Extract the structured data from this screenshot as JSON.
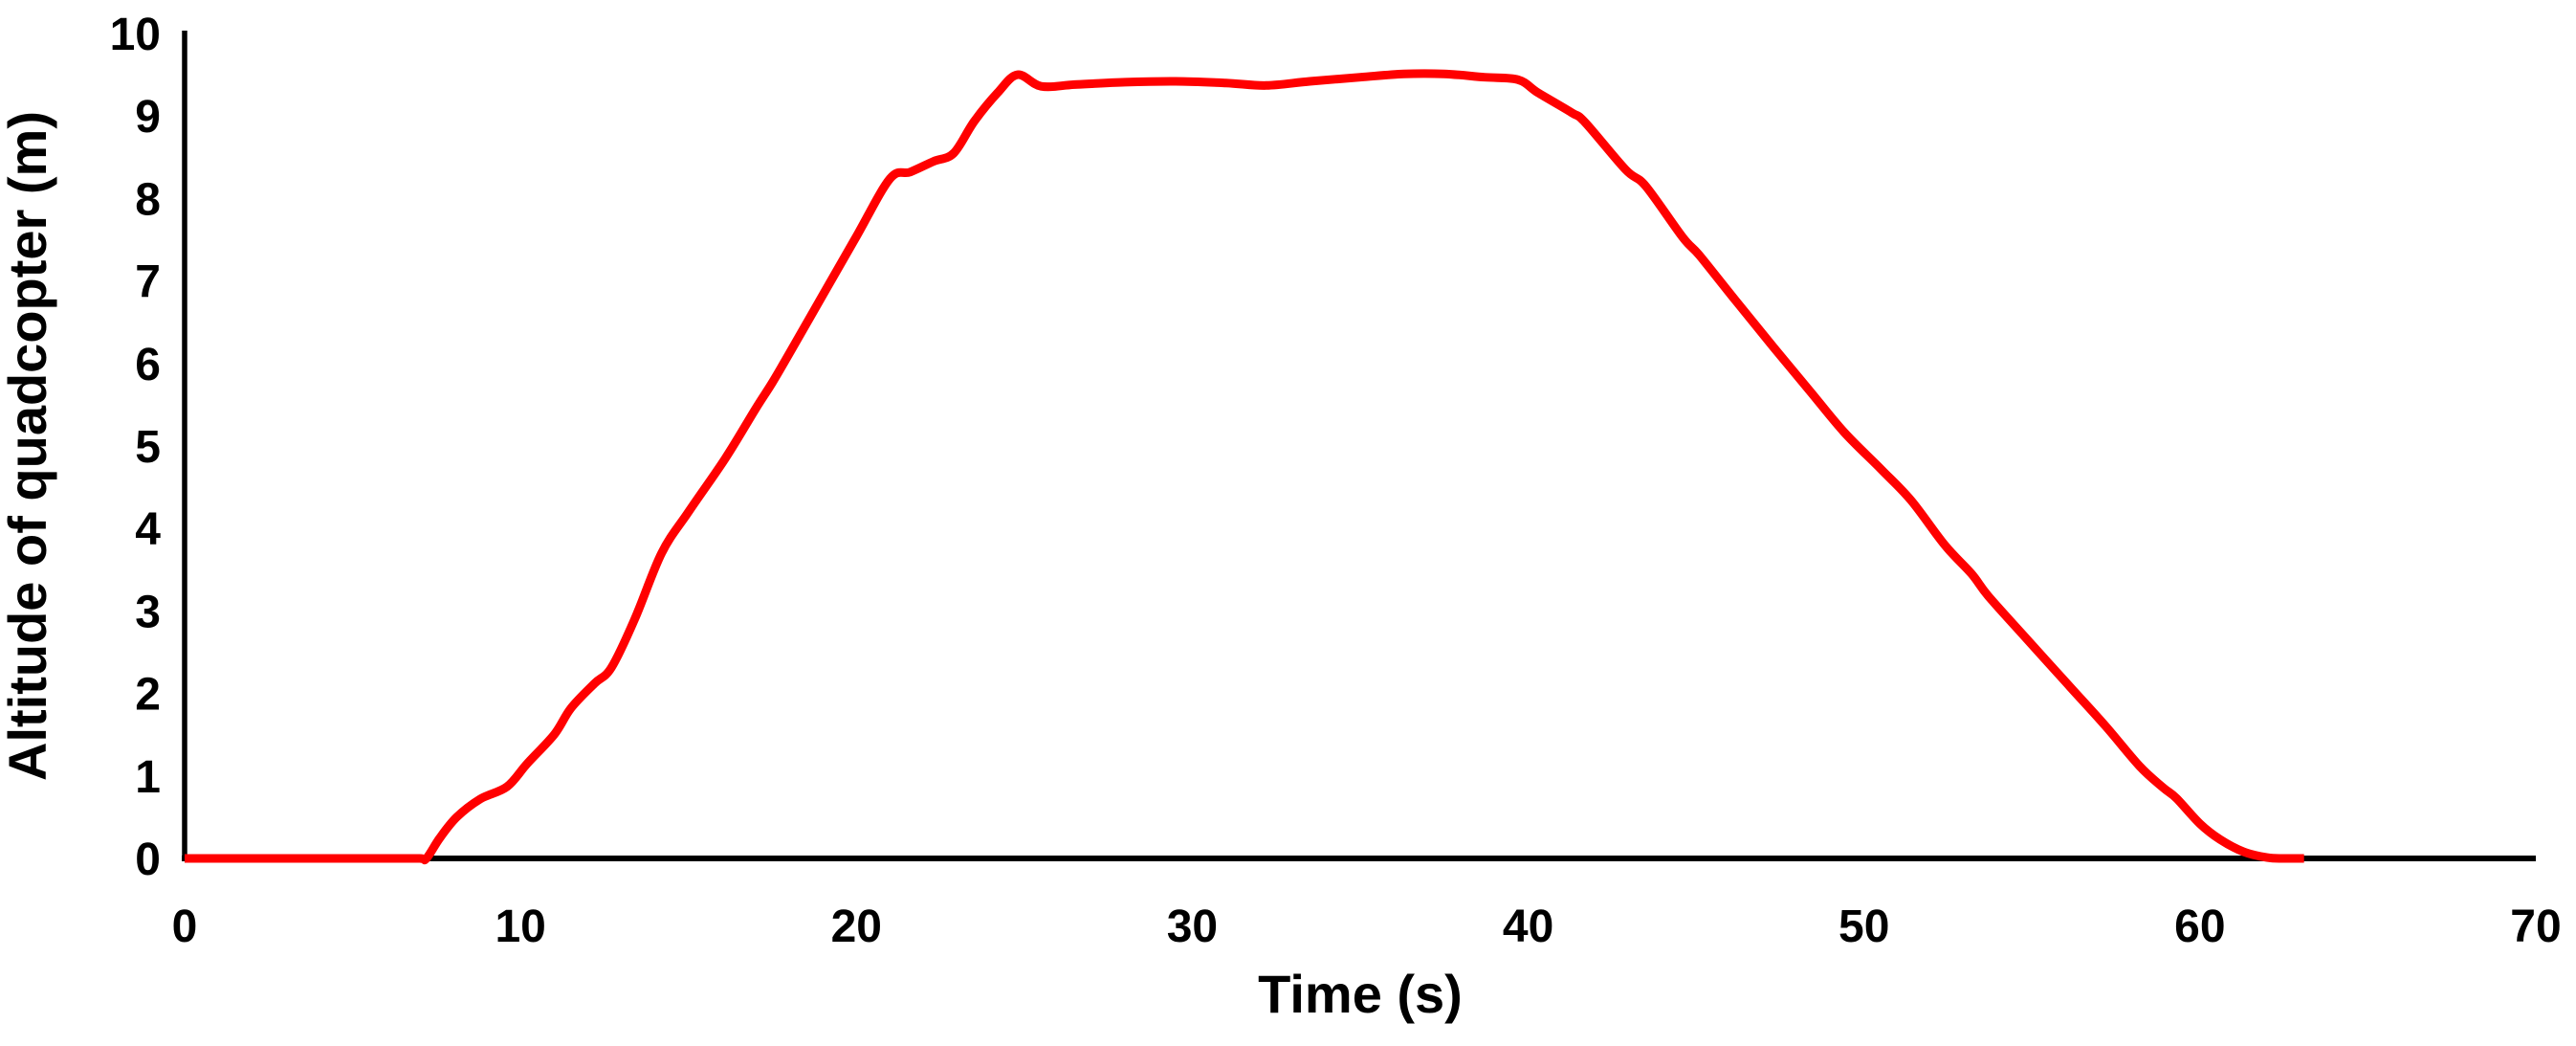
{
  "chart_data": {
    "type": "line",
    "title": "",
    "xlabel": "Time (s)",
    "ylabel": "Altitude of quadcopter (m)",
    "xlim": [
      0,
      70
    ],
    "ylim": [
      0,
      10
    ],
    "x_ticks": [
      0,
      10,
      20,
      30,
      40,
      50,
      60,
      70
    ],
    "y_ticks": [
      0,
      1,
      2,
      3,
      4,
      5,
      6,
      7,
      8,
      9,
      10
    ],
    "grid": false,
    "legend_position": "none",
    "axis_color": "#000000",
    "background_color": "#FFFFFF",
    "series": [
      {
        "name": "altitude",
        "color": "#FF0000",
        "points": [
          [
            0,
            0
          ],
          [
            1,
            0
          ],
          [
            2,
            0
          ],
          [
            3,
            0
          ],
          [
            4,
            0
          ],
          [
            5,
            0
          ],
          [
            6,
            0
          ],
          [
            7,
            0
          ],
          [
            7.2,
            0
          ],
          [
            7.6,
            0.25
          ],
          [
            8.1,
            0.5
          ],
          [
            8.8,
            0.72
          ],
          [
            9.6,
            0.87
          ],
          [
            10.2,
            1.15
          ],
          [
            11,
            1.5
          ],
          [
            11.5,
            1.82
          ],
          [
            12.2,
            2.12
          ],
          [
            12.7,
            2.31
          ],
          [
            13.4,
            2.9
          ],
          [
            14.2,
            3.7
          ],
          [
            15,
            4.2
          ],
          [
            16.1,
            4.85
          ],
          [
            17,
            5.45
          ],
          [
            17.5,
            5.77
          ],
          [
            18,
            6.12
          ],
          [
            19,
            6.83
          ],
          [
            20,
            7.54
          ],
          [
            21,
            8.24
          ],
          [
            21.6,
            8.32
          ],
          [
            22.3,
            8.45
          ],
          [
            22.9,
            8.55
          ],
          [
            23.5,
            8.93
          ],
          [
            24.2,
            9.28
          ],
          [
            24.8,
            9.5
          ],
          [
            25.5,
            9.36
          ],
          [
            26.5,
            9.38
          ],
          [
            28,
            9.41
          ],
          [
            29.5,
            9.42
          ],
          [
            31,
            9.4
          ],
          [
            32.2,
            9.37
          ],
          [
            33.5,
            9.42
          ],
          [
            35,
            9.47
          ],
          [
            36.3,
            9.51
          ],
          [
            37.5,
            9.51
          ],
          [
            38.7,
            9.47
          ],
          [
            39.7,
            9.44
          ],
          [
            40.3,
            9.28
          ],
          [
            41.3,
            9.04
          ],
          [
            41.7,
            8.92
          ],
          [
            42.9,
            8.35
          ],
          [
            43.5,
            8.15
          ],
          [
            44.6,
            7.53
          ],
          [
            45.1,
            7.31
          ],
          [
            46.2,
            6.75
          ],
          [
            47.3,
            6.2
          ],
          [
            48.4,
            5.66
          ],
          [
            49.4,
            5.17
          ],
          [
            50.5,
            4.72
          ],
          [
            51.4,
            4.34
          ],
          [
            52.4,
            3.8
          ],
          [
            53.2,
            3.45
          ],
          [
            53.7,
            3.18
          ],
          [
            54.8,
            2.68
          ],
          [
            56.2,
            2.05
          ],
          [
            57.2,
            1.6
          ],
          [
            58.2,
            1.12
          ],
          [
            58.9,
            0.86
          ],
          [
            59.3,
            0.73
          ],
          [
            60,
            0.42
          ],
          [
            60.6,
            0.23
          ],
          [
            61.3,
            0.08
          ],
          [
            62,
            0.01
          ],
          [
            62.5,
            0
          ],
          [
            63.1,
            0
          ]
        ]
      }
    ]
  }
}
